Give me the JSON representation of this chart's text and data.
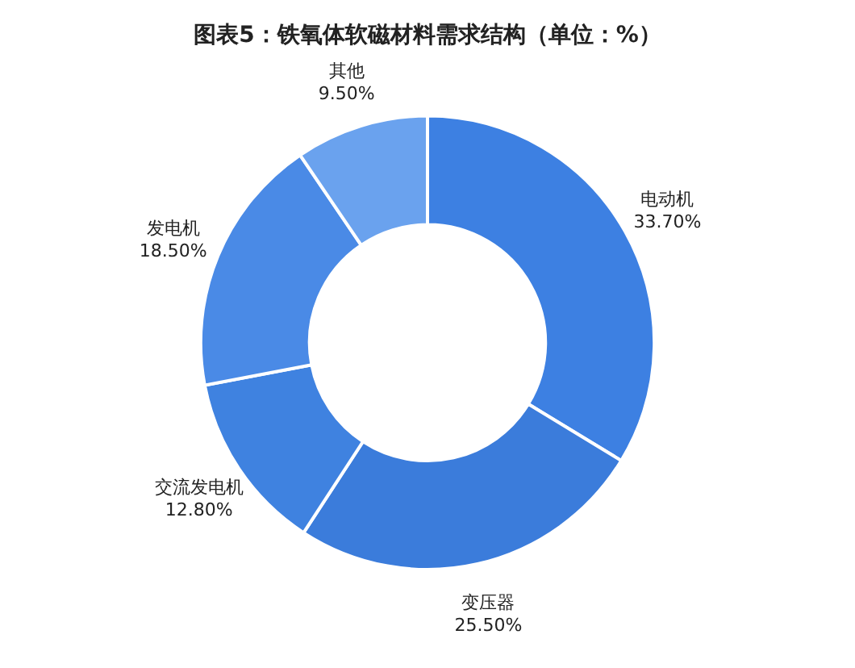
{
  "chart_data": {
    "type": "donut",
    "title": "图表5：铁氧体软磁材料需求结构（单位：%）",
    "categories": [
      "电动机",
      "变压器",
      "交流发电机",
      "发电机",
      "其他"
    ],
    "values": [
      33.7,
      25.5,
      12.8,
      18.5,
      9.5
    ],
    "value_labels": [
      "33.70%",
      "25.50%",
      "12.80%",
      "18.50%",
      "9.50%"
    ],
    "colors": [
      "#3d80e2",
      "#3b7cdb",
      "#3f82e0",
      "#4a8ae6",
      "#6aa2ee"
    ],
    "legend": false
  }
}
